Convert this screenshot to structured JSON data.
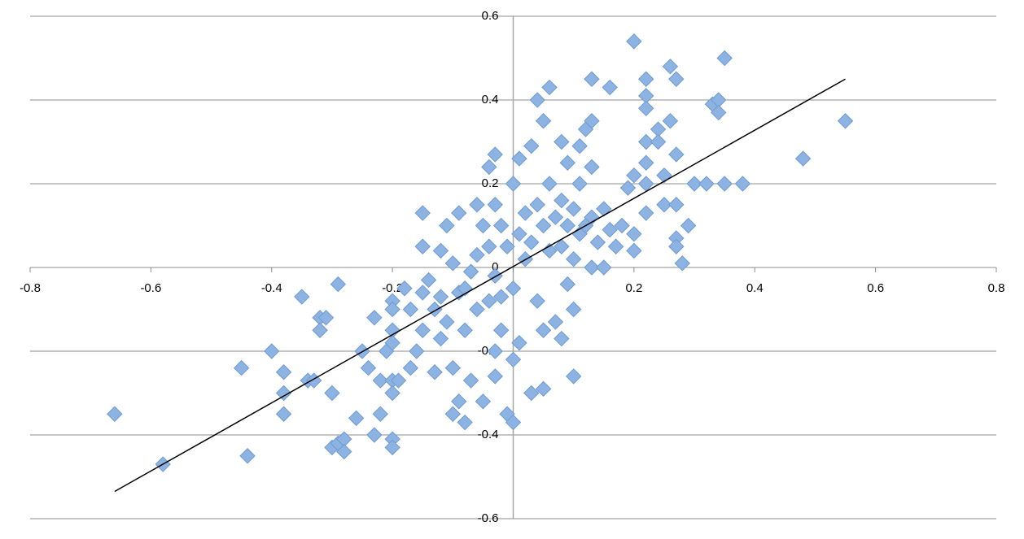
{
  "chart_data": {
    "type": "scatter",
    "x": [
      -0.66,
      -0.58,
      -0.45,
      -0.44,
      -0.4,
      -0.38,
      -0.38,
      -0.38,
      -0.35,
      -0.34,
      -0.33,
      -0.32,
      -0.32,
      -0.31,
      -0.3,
      -0.3,
      -0.29,
      -0.29,
      -0.28,
      -0.28,
      -0.26,
      -0.25,
      -0.24,
      -0.23,
      -0.23,
      -0.22,
      -0.22,
      -0.21,
      -0.2,
      -0.2,
      -0.2,
      -0.2,
      -0.2,
      -0.2,
      -0.2,
      -0.2,
      -0.19,
      -0.18,
      -0.17,
      -0.17,
      -0.16,
      -0.15,
      -0.15,
      -0.15,
      -0.15,
      -0.14,
      -0.13,
      -0.13,
      -0.12,
      -0.12,
      -0.12,
      -0.11,
      -0.11,
      -0.1,
      -0.1,
      -0.1,
      -0.09,
      -0.09,
      -0.09,
      -0.08,
      -0.08,
      -0.08,
      -0.07,
      -0.07,
      -0.06,
      -0.06,
      -0.06,
      -0.05,
      -0.05,
      -0.04,
      -0.04,
      -0.04,
      -0.03,
      -0.03,
      -0.03,
      -0.03,
      -0.03,
      -0.02,
      -0.02,
      -0.02,
      -0.01,
      -0.01,
      0.0,
      0.0,
      0.0,
      0.0,
      0.01,
      0.01,
      0.01,
      0.02,
      0.02,
      0.03,
      0.03,
      0.03,
      0.04,
      0.04,
      0.04,
      0.05,
      0.05,
      0.05,
      0.05,
      0.06,
      0.06,
      0.06,
      0.07,
      0.07,
      0.08,
      0.08,
      0.08,
      0.08,
      0.09,
      0.09,
      0.09,
      0.1,
      0.1,
      0.1,
      0.1,
      0.11,
      0.11,
      0.11,
      0.12,
      0.12,
      0.13,
      0.13,
      0.13,
      0.13,
      0.13,
      0.14,
      0.15,
      0.15,
      0.16,
      0.16,
      0.17,
      0.18,
      0.19,
      0.2,
      0.2,
      0.2,
      0.2,
      0.22,
      0.22,
      0.22,
      0.22,
      0.22,
      0.22,
      0.22,
      0.24,
      0.24,
      0.25,
      0.25,
      0.26,
      0.26,
      0.27,
      0.27,
      0.27,
      0.27,
      0.27,
      0.28,
      0.29,
      0.3,
      0.32,
      0.33,
      0.34,
      0.34,
      0.35,
      0.35,
      0.38,
      0.48,
      0.55
    ],
    "values": [
      -0.35,
      -0.47,
      -0.24,
      -0.45,
      -0.2,
      -0.25,
      -0.3,
      -0.35,
      -0.07,
      -0.27,
      -0.27,
      -0.12,
      -0.15,
      -0.12,
      -0.3,
      -0.43,
      -0.04,
      -0.42,
      -0.41,
      -0.44,
      -0.36,
      -0.2,
      -0.24,
      -0.4,
      -0.12,
      -0.35,
      -0.27,
      -0.2,
      -0.08,
      -0.1,
      -0.15,
      -0.18,
      -0.27,
      -0.3,
      -0.41,
      -0.43,
      -0.27,
      -0.05,
      -0.1,
      -0.24,
      -0.2,
      -0.06,
      0.13,
      0.05,
      -0.15,
      -0.03,
      -0.1,
      -0.25,
      0.04,
      -0.07,
      -0.17,
      0.1,
      -0.13,
      0.01,
      -0.35,
      -0.24,
      0.13,
      -0.06,
      -0.32,
      -0.05,
      -0.15,
      -0.37,
      -0.01,
      -0.27,
      0.15,
      0.03,
      -0.1,
      0.1,
      -0.32,
      0.24,
      0.05,
      -0.08,
      0.27,
      0.15,
      -0.02,
      -0.2,
      -0.26,
      0.1,
      -0.07,
      -0.15,
      0.05,
      -0.35,
      0.2,
      -0.05,
      -0.22,
      -0.37,
      0.26,
      0.08,
      -0.18,
      0.13,
      0.02,
      0.29,
      0.06,
      -0.3,
      0.4,
      0.15,
      -0.08,
      0.35,
      0.1,
      -0.15,
      -0.29,
      0.43,
      0.2,
      0.04,
      0.12,
      -0.13,
      0.3,
      0.16,
      0.05,
      -0.17,
      0.25,
      0.1,
      -0.04,
      0.14,
      0.02,
      -0.26,
      -0.1,
      0.29,
      0.2,
      0.08,
      0.33,
      0.1,
      0.45,
      0.35,
      0.24,
      0.12,
      0.0,
      0.06,
      0.14,
      0.0,
      0.09,
      0.43,
      0.05,
      0.1,
      0.19,
      0.54,
      0.22,
      0.08,
      0.04,
      0.45,
      0.41,
      0.38,
      0.3,
      0.25,
      0.2,
      0.13,
      0.33,
      0.3,
      0.22,
      0.15,
      0.48,
      0.35,
      0.45,
      0.27,
      0.15,
      0.07,
      0.05,
      0.01,
      0.1,
      0.2,
      0.2,
      0.39,
      0.4,
      0.37,
      0.5,
      0.2,
      0.2,
      0.26,
      0.35
    ],
    "color": "#8db3e2",
    "trendline": {
      "x": [
        -0.66,
        0.55
      ],
      "values": [
        -0.535,
        0.45
      ],
      "color": "#000000"
    },
    "xlim": [
      -0.8,
      0.8
    ],
    "xticks": [
      -0.8,
      -0.6,
      -0.4,
      -0.2,
      0,
      0.2,
      0.4,
      0.6,
      0.8
    ],
    "ylim": [
      -0.6,
      0.6
    ],
    "yticks": [
      -0.6,
      -0.4,
      -0.2,
      0,
      0.2,
      0.4,
      0.6
    ],
    "grid": true
  }
}
